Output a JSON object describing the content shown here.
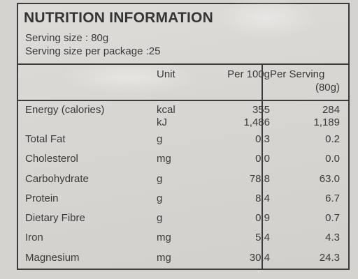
{
  "title": "NUTRITION INFORMATION",
  "serving_size": "Serving size : 80g",
  "servings_per_package": "Serving size per package :25",
  "headers": {
    "unit": "Unit",
    "per100": "Per 100g",
    "per_serving_line1": "Per Serving",
    "per_serving_line2": "(80g)"
  },
  "rows": [
    {
      "name": "Energy (calories)",
      "unit": "kcal",
      "per100": "355",
      "per_serving": "284"
    },
    {
      "name": "",
      "unit": "kJ",
      "per100": "1,486",
      "per_serving": "1,189"
    },
    {
      "name": "Total Fat",
      "unit": "g",
      "per100": "0.3",
      "per_serving": "0.2"
    },
    {
      "name": "Cholesterol",
      "unit": "mg",
      "per100": "0.0",
      "per_serving": "0.0"
    },
    {
      "name": "Carbohydrate",
      "unit": "g",
      "per100": "78.8",
      "per_serving": "63.0"
    },
    {
      "name": "Protein",
      "unit": "g",
      "per100": "8.4",
      "per_serving": "6.7"
    },
    {
      "name": "Dietary Fibre",
      "unit": "g",
      "per100": "0.9",
      "per_serving": "0.7"
    },
    {
      "name": "Iron",
      "unit": "mg",
      "per100": "5.4",
      "per_serving": "4.3"
    },
    {
      "name": "Magnesium",
      "unit": "mg",
      "per100": "30.4",
      "per_serving": "24.3"
    }
  ]
}
